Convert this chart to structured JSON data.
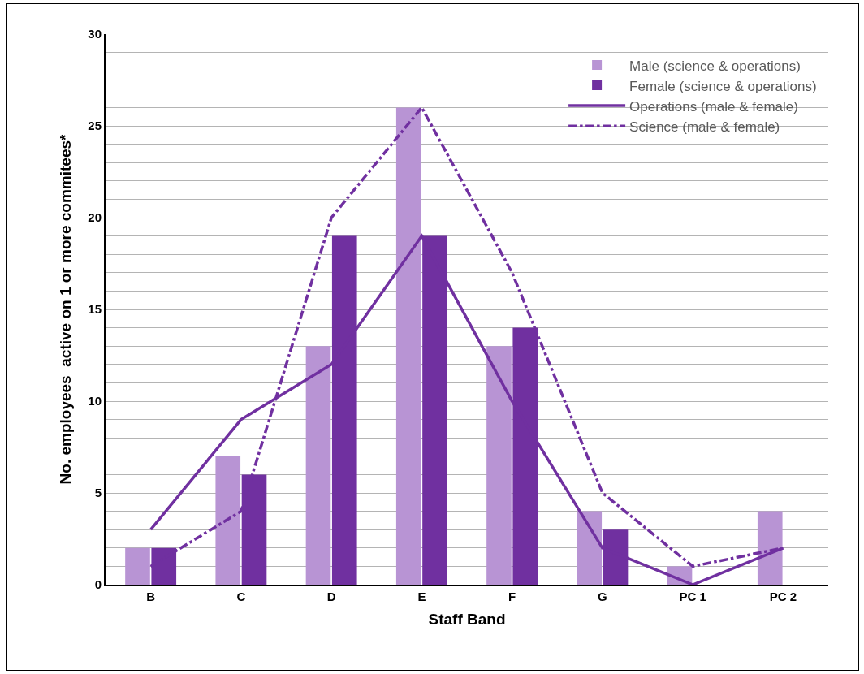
{
  "chart_data": {
    "type": "bar",
    "xlabel": "Staff Band",
    "ylabel": "No. employees  active on 1 or more commitees*",
    "categories": [
      "B",
      "C",
      "D",
      "E",
      "F",
      "G",
      "PC 1",
      "PC 2"
    ],
    "series": [
      {
        "name": "Male (science & operations)",
        "color": "#b894d4",
        "values": [
          2,
          7,
          13,
          26,
          13,
          4,
          1,
          4
        ]
      },
      {
        "name": "Female (science & operations)",
        "color": "#7030a0",
        "values": [
          2,
          6,
          19,
          19,
          14,
          3,
          0,
          0
        ]
      },
      {
        "name": "Operations (male & female)",
        "type": "line",
        "line_style": "solid",
        "color": "#7030a0",
        "values": [
          3,
          9,
          12,
          19,
          10,
          2,
          0,
          2
        ]
      },
      {
        "name": "Science (male & female)",
        "type": "line",
        "line_style": "dashdot",
        "color": "#7030a0",
        "values": [
          1,
          4,
          20,
          26,
          17,
          5,
          1,
          2
        ]
      }
    ],
    "ylim": [
      0,
      30
    ],
    "yticks": [
      0,
      {
        "value": 1,
        "label": null
      },
      {
        "value": 2,
        "label": null
      },
      {
        "value": 3,
        "label": null
      },
      {
        "value": 4,
        "label": null
      },
      5,
      {
        "value": 6,
        "label": null
      },
      {
        "value": 7,
        "label": null
      },
      {
        "value": 8,
        "label": null
      },
      {
        "value": 9,
        "label": null
      },
      10,
      {
        "value": 11,
        "label": null
      },
      {
        "value": 12,
        "label": null
      },
      {
        "value": 13,
        "label": null
      },
      {
        "value": 14,
        "label": null
      },
      15,
      {
        "value": 16,
        "label": null
      },
      {
        "value": 17,
        "label": null
      },
      {
        "value": 18,
        "label": null
      },
      {
        "value": 19,
        "label": null
      },
      20,
      {
        "value": 21,
        "label": null
      },
      {
        "value": 22,
        "label": null
      },
      {
        "value": 23,
        "label": null
      },
      {
        "value": 24,
        "label": null
      },
      25,
      {
        "value": 26,
        "label": null
      },
      {
        "value": 27,
        "label": null
      },
      {
        "value": 28,
        "label": null
      },
      {
        "value": 29,
        "label": null
      },
      30
    ],
    "grid": "y",
    "legend": "top right",
    "marker": "none"
  }
}
